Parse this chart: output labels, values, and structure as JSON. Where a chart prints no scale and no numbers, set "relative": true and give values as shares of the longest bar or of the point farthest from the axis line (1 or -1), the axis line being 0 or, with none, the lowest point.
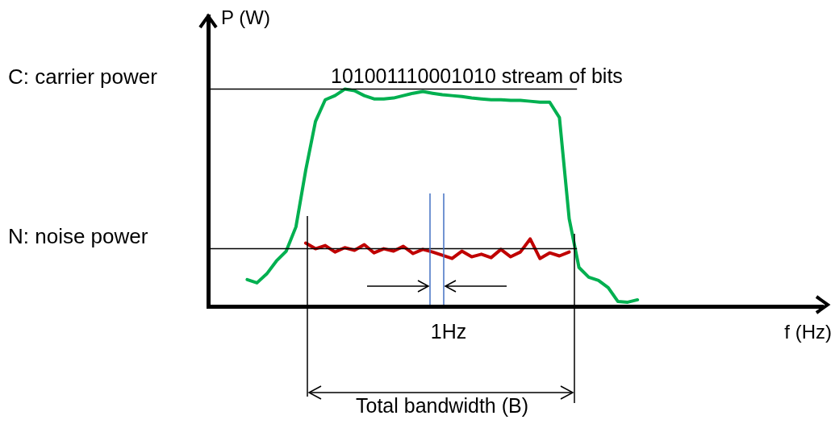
{
  "chart_data": {
    "type": "line",
    "relative": true,
    "marker": "none",
    "ylabel": "P (W)",
    "xlabel": "f (Hz)",
    "categories": [
      null,
      null,
      null,
      null,
      null,
      null,
      null,
      null,
      null,
      null,
      null,
      null,
      null,
      null,
      null,
      null,
      null,
      null,
      null,
      null,
      null,
      null,
      null,
      null,
      null,
      null,
      null,
      null,
      null,
      null,
      null,
      null,
      null,
      null,
      null,
      null,
      null,
      null,
      null,
      null,
      null,
      null,
      null,
      null,
      null,
      null,
      null,
      null,
      null,
      null,
      null,
      null,
      null,
      null,
      null,
      null,
      null,
      null,
      null,
      null,
      null,
      null,
      null,
      null
    ],
    "series": [
      {
        "color": "#00b050",
        "values": [
          null,
          null,
          null,
          null,
          0.123,
          0.108,
          0.149,
          0.209,
          0.254,
          0.366,
          0.627,
          0.851,
          0.951,
          0.97,
          1,
          0.993,
          0.97,
          0.955,
          0.955,
          0.959,
          0.97,
          0.981,
          0.989,
          0.981,
          0.974,
          0.97,
          0.966,
          0.959,
          0.955,
          0.951,
          0.951,
          0.948,
          0.948,
          0.944,
          0.94,
          0.94,
          0.869,
          0.403,
          0.179,
          0.134,
          0.119,
          0.086,
          0.022,
          0.019,
          0.03,
          null,
          null,
          null,
          null,
          null,
          null,
          null,
          null,
          null,
          null,
          null,
          null,
          null,
          null,
          null,
          null,
          null,
          null,
          null
        ]
      },
      {
        "color": "#c00000",
        "values": [
          null,
          null,
          null,
          null,
          null,
          null,
          null,
          null,
          null,
          null,
          0.291,
          0.265,
          0.28,
          0.25,
          0.27,
          0.258,
          0.284,
          0.246,
          0.265,
          0.254,
          0.276,
          0.243,
          0.262,
          0.25,
          0.235,
          0.22,
          0.254,
          0.228,
          0.24,
          0.224,
          0.262,
          0.228,
          0.25,
          0.31,
          0.22,
          0.246,
          0.232,
          0.25,
          null,
          null,
          null,
          null,
          null,
          null,
          null,
          null,
          null,
          null,
          null,
          null,
          null,
          null,
          null,
          null,
          null,
          null,
          null,
          null,
          null,
          null,
          null,
          null,
          null,
          null
        ]
      }
    ],
    "ref_lines": [
      {
        "axis": "y",
        "value": 1,
        "label": "C: carrier power",
        "color": "#000000"
      },
      {
        "axis": "y",
        "value": 0.265,
        "label": "N: noise power",
        "color": "#000000"
      }
    ],
    "annotations": [
      "101001110001010 stream of bits",
      "1Hz",
      "Total bandwidth (B)"
    ]
  }
}
